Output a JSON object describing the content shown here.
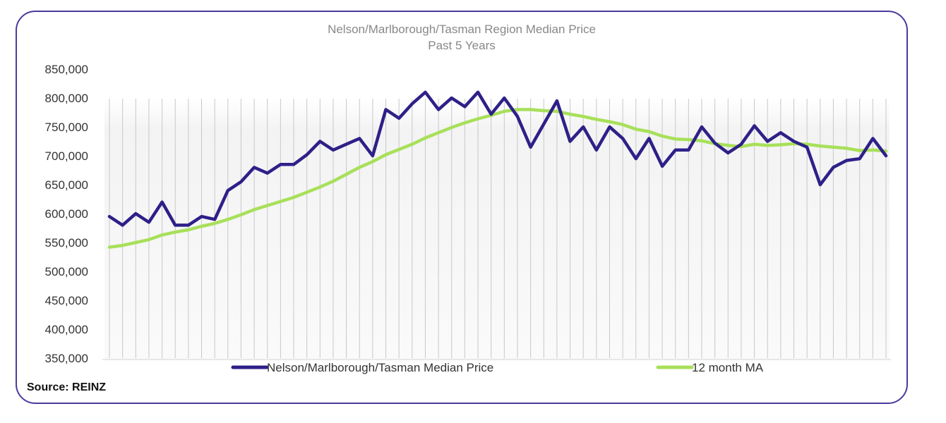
{
  "colors": {
    "price_line": "#2e2088",
    "ma_line": "#a8e05a",
    "frame": "#4a3a9e",
    "grid": "#c8c8c8",
    "axis_text": "#333333",
    "title_text": "#888888"
  },
  "source": "Source: REINZ",
  "chart_data": {
    "type": "line",
    "title": "Nelson/Marlborough/Tasman Region Median Price",
    "subtitle": "Past 5 Years",
    "xlabel": "",
    "ylabel": "",
    "ylim": [
      350000,
      850000
    ],
    "yticks": [
      "350,000",
      "400,000",
      "450,000",
      "500,000",
      "550,000",
      "600,000",
      "650,000",
      "700,000",
      "750,000",
      "800,000",
      "850,000"
    ],
    "grid": "vertical",
    "legend": "bottom",
    "series": [
      {
        "name": "Nelson/Marlborough/Tasman Median Price",
        "color": "#2e2088",
        "values": [
          595000,
          580000,
          600000,
          585000,
          620000,
          580000,
          580000,
          595000,
          590000,
          640000,
          655000,
          680000,
          670000,
          685000,
          685000,
          702000,
          725000,
          710000,
          720000,
          730000,
          700000,
          780000,
          765000,
          790000,
          810000,
          780000,
          800000,
          785000,
          810000,
          772000,
          800000,
          768000,
          715000,
          755000,
          795000,
          725000,
          750000,
          710000,
          750000,
          730000,
          695000,
          730000,
          682000,
          710000,
          710000,
          750000,
          722000,
          705000,
          720000,
          752000,
          725000,
          740000,
          725000,
          715000,
          650000,
          680000,
          692000,
          695000,
          730000,
          700000
        ]
      },
      {
        "name": "12 month MA",
        "color": "#a8e05a",
        "values": [
          542000,
          545000,
          550000,
          555000,
          563000,
          568000,
          572000,
          578000,
          583000,
          590000,
          598000,
          607000,
          614000,
          621000,
          628000,
          637000,
          646000,
          656000,
          668000,
          680000,
          690000,
          702000,
          711000,
          720000,
          731000,
          740000,
          749000,
          757000,
          764000,
          770000,
          777000,
          780000,
          780000,
          778000,
          777000,
          772000,
          768000,
          763000,
          759000,
          754000,
          746000,
          742000,
          734000,
          729000,
          728000,
          726000,
          721000,
          718000,
          716000,
          720000,
          718000,
          719000,
          721000,
          720000,
          717000,
          715000,
          713000,
          709000,
          710000,
          708000
        ]
      }
    ]
  }
}
